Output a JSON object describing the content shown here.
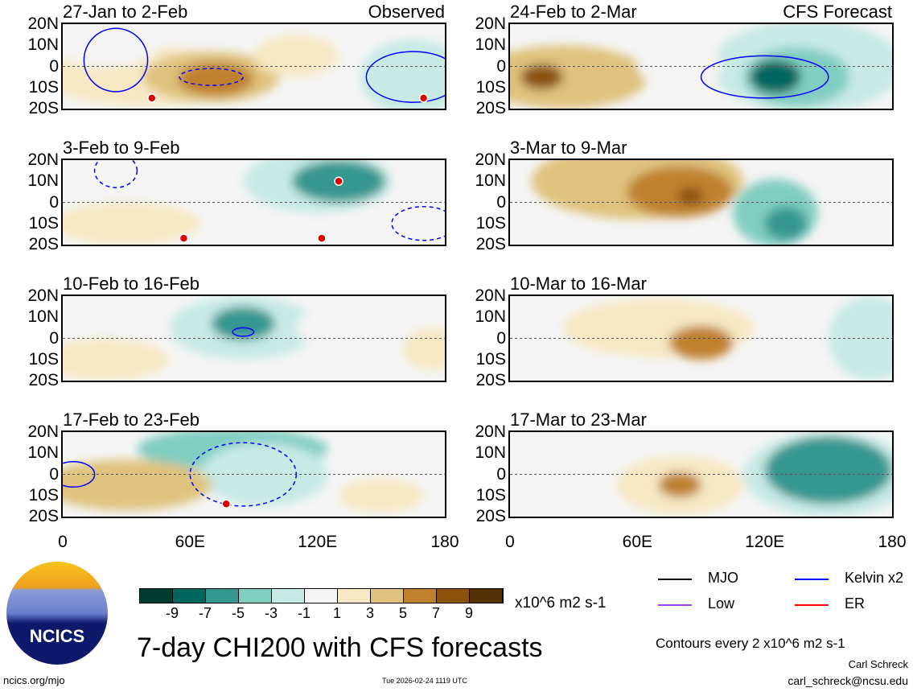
{
  "panels": [
    {
      "title": "27-Jan to 2-Feb",
      "tag": "Observed"
    },
    {
      "title": "24-Feb to 2-Mar",
      "tag": "CFS Forecast"
    },
    {
      "title": "3-Feb to 9-Feb",
      "tag": ""
    },
    {
      "title": "3-Mar to 9-Mar",
      "tag": ""
    },
    {
      "title": "10-Feb to 16-Feb",
      "tag": ""
    },
    {
      "title": "10-Mar to 16-Mar",
      "tag": ""
    },
    {
      "title": "17-Feb to 23-Feb",
      "tag": ""
    },
    {
      "title": "17-Mar to 23-Mar",
      "tag": ""
    }
  ],
  "y_ticks": [
    "20N",
    "10N",
    "0",
    "10S",
    "20S"
  ],
  "x_ticks": [
    "0",
    "60E",
    "120E",
    "180"
  ],
  "colorbar": {
    "labels": [
      "-9",
      "-7",
      "-5",
      "-3",
      "-1",
      "1",
      "3",
      "5",
      "7",
      "9"
    ],
    "colors": [
      "#003c30",
      "#01665e",
      "#35978f",
      "#80cdc1",
      "#c7eae5",
      "#f5f5f5",
      "#f6e8c3",
      "#dfc27d",
      "#bf812d",
      "#8c510a",
      "#543005"
    ],
    "units": "x10^6 m2 s-1"
  },
  "legend": {
    "items": [
      {
        "label": "MJO",
        "color": "#000000"
      },
      {
        "label": "Kelvin x2",
        "color": "#0000ff"
      },
      {
        "label": "Low",
        "color": "#a040e0"
      },
      {
        "label": "ER",
        "color": "#ff0000"
      }
    ],
    "contours": "Contours every 2 x10^6 m2 s-1"
  },
  "title": "7-day CHI200 with CFS forecasts",
  "logo_text": "NCICS",
  "footer": {
    "url": "ncics.org/mjo",
    "timestamp": "Tue 2026-02-24 1119 UTC",
    "author": "Carl Schreck",
    "email": "carl_schreck@ncsu.edu"
  },
  "chart_data": {
    "type": "heatmap",
    "lon_range": [
      0,
      180
    ],
    "lat_range": [
      -20,
      20
    ],
    "features": [
      [
        [
          40,
          -5,
          50,
          14,
          2
        ],
        [
          70,
          -5,
          32,
          12,
          4
        ],
        [
          72,
          -6,
          18,
          8,
          6
        ],
        [
          165,
          -5,
          25,
          18,
          -3
        ],
        [
          20,
          10,
          25,
          10,
          -1
        ],
        [
          110,
          5,
          20,
          10,
          2
        ]
      ],
      [
        [
          25,
          -5,
          40,
          15,
          4
        ],
        [
          15,
          -5,
          10,
          6,
          7
        ],
        [
          140,
          0,
          45,
          22,
          -3
        ],
        [
          135,
          -5,
          25,
          14,
          -5
        ],
        [
          125,
          -5,
          12,
          8,
          -8
        ],
        [
          80,
          0,
          20,
          10,
          -1
        ]
      ],
      [
        [
          30,
          -10,
          35,
          10,
          2
        ],
        [
          120,
          10,
          35,
          15,
          -3
        ],
        [
          130,
          10,
          22,
          10,
          -6
        ],
        [
          15,
          15,
          25,
          6,
          -1
        ],
        [
          160,
          -10,
          20,
          10,
          -1
        ]
      ],
      [
        [
          60,
          10,
          50,
          18,
          3
        ],
        [
          80,
          5,
          25,
          12,
          5
        ],
        [
          85,
          3,
          6,
          4,
          8
        ],
        [
          125,
          -5,
          20,
          16,
          -4
        ],
        [
          130,
          -10,
          10,
          8,
          -7
        ]
      ],
      [
        [
          85,
          5,
          35,
          15,
          -3
        ],
        [
          85,
          7,
          15,
          8,
          -6
        ],
        [
          140,
          5,
          30,
          12,
          -1
        ],
        [
          20,
          -10,
          30,
          10,
          1
        ],
        [
          175,
          -5,
          15,
          10,
          1
        ]
      ],
      [
        [
          70,
          5,
          45,
          14,
          2
        ],
        [
          90,
          -2,
          15,
          8,
          5
        ],
        [
          170,
          0,
          20,
          20,
          -2
        ],
        [
          40,
          -15,
          20,
          6,
          -1
        ]
      ],
      [
        [
          80,
          12,
          45,
          10,
          -4
        ],
        [
          95,
          0,
          30,
          15,
          -2
        ],
        [
          30,
          -5,
          40,
          12,
          3
        ],
        [
          150,
          -10,
          20,
          8,
          2
        ]
      ],
      [
        [
          80,
          -5,
          30,
          14,
          2
        ],
        [
          80,
          -5,
          10,
          6,
          5
        ],
        [
          150,
          0,
          40,
          20,
          -3
        ],
        [
          150,
          2,
          30,
          16,
          -7
        ]
      ]
    ],
    "kelvin_contours": [
      [
        [
          25,
          3,
          15,
          15,
          false
        ],
        [
          165,
          -5,
          22,
          12,
          false
        ],
        [
          70,
          -5,
          15,
          4,
          true
        ]
      ],
      [
        [
          120,
          -5,
          30,
          10,
          false
        ]
      ],
      [
        [
          25,
          15,
          10,
          8,
          true
        ],
        [
          170,
          -10,
          15,
          8,
          true
        ]
      ],
      [],
      [
        [
          85,
          3,
          5,
          2,
          false
        ]
      ],
      [],
      [
        [
          5,
          0,
          10,
          6,
          false
        ],
        [
          85,
          0,
          25,
          15,
          true
        ]
      ],
      []
    ],
    "er_markers": [
      [
        [
          42,
          -15
        ],
        [
          170,
          -15
        ]
      ],
      [],
      [
        [
          57,
          -17
        ],
        [
          130,
          10
        ],
        [
          122,
          -17
        ]
      ],
      [],
      [],
      [],
      [
        [
          77,
          -14
        ]
      ],
      []
    ]
  }
}
